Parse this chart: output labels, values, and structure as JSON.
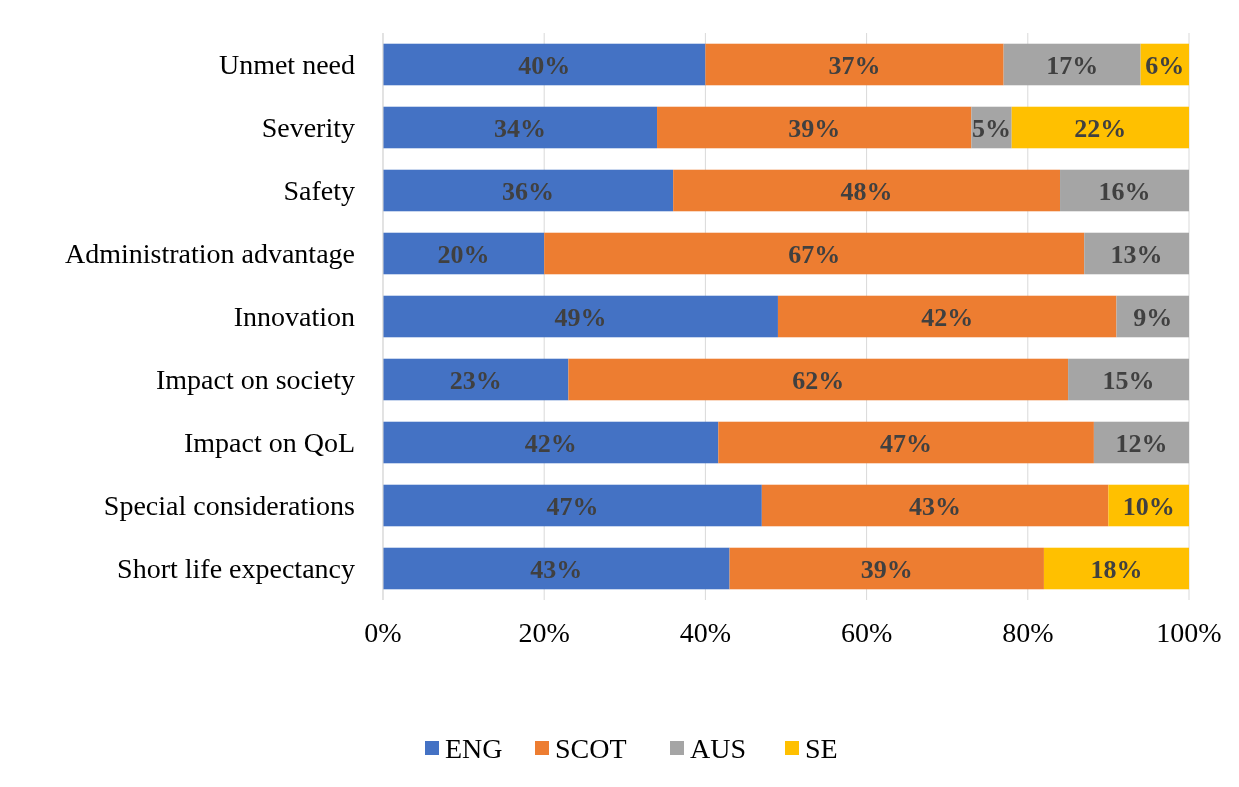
{
  "chart_data": {
    "type": "bar",
    "orientation": "horizontal",
    "stacked": true,
    "categories": [
      "Unmet need",
      "Severity",
      "Safety",
      "Administration advantage",
      "Innovation",
      "Impact on society",
      "Impact on QoL",
      "Special considerations",
      "Short life expectancy"
    ],
    "series": [
      {
        "name": "ENG",
        "color": "#4472c4",
        "values": [
          40,
          34,
          36,
          20,
          49,
          23,
          41.6,
          47,
          43
        ],
        "value_labels": [
          "40%",
          "34%",
          "36%",
          "20%",
          "49%",
          "23%",
          "42%",
          "47%",
          "43%"
        ]
      },
      {
        "name": "SCOT",
        "color": "#ed7d31",
        "values": [
          37,
          39,
          48,
          67,
          42,
          62,
          46.6,
          43,
          39
        ],
        "value_labels": [
          "37%",
          "39%",
          "48%",
          "67%",
          "42%",
          "62%",
          "47%",
          "43%",
          "39%"
        ]
      },
      {
        "name": "AUS",
        "color": "#a5a5a5",
        "values": [
          17,
          5,
          16,
          13,
          9,
          15,
          11.8,
          null,
          null
        ],
        "value_labels": [
          "17%",
          "5%",
          "16%",
          "13%",
          "9%",
          "15%",
          "12%",
          null,
          null
        ]
      },
      {
        "name": "SE",
        "color": "#ffc000",
        "values": [
          6,
          22,
          null,
          null,
          null,
          null,
          null,
          10,
          18
        ],
        "value_labels": [
          "6%",
          "22%",
          null,
          null,
          null,
          null,
          null,
          "10%",
          "18%"
        ]
      }
    ],
    "xlim": [
      0,
      100
    ],
    "xticks": [
      {
        "value": 0,
        "label": "0%"
      },
      {
        "value": 20,
        "label": "20%"
      },
      {
        "value": 40,
        "label": "40%"
      },
      {
        "value": 60,
        "label": "60%"
      },
      {
        "value": 80,
        "label": "80%"
      },
      {
        "value": 100,
        "label": "100%"
      }
    ],
    "grid": "x",
    "legend": "bottom"
  }
}
